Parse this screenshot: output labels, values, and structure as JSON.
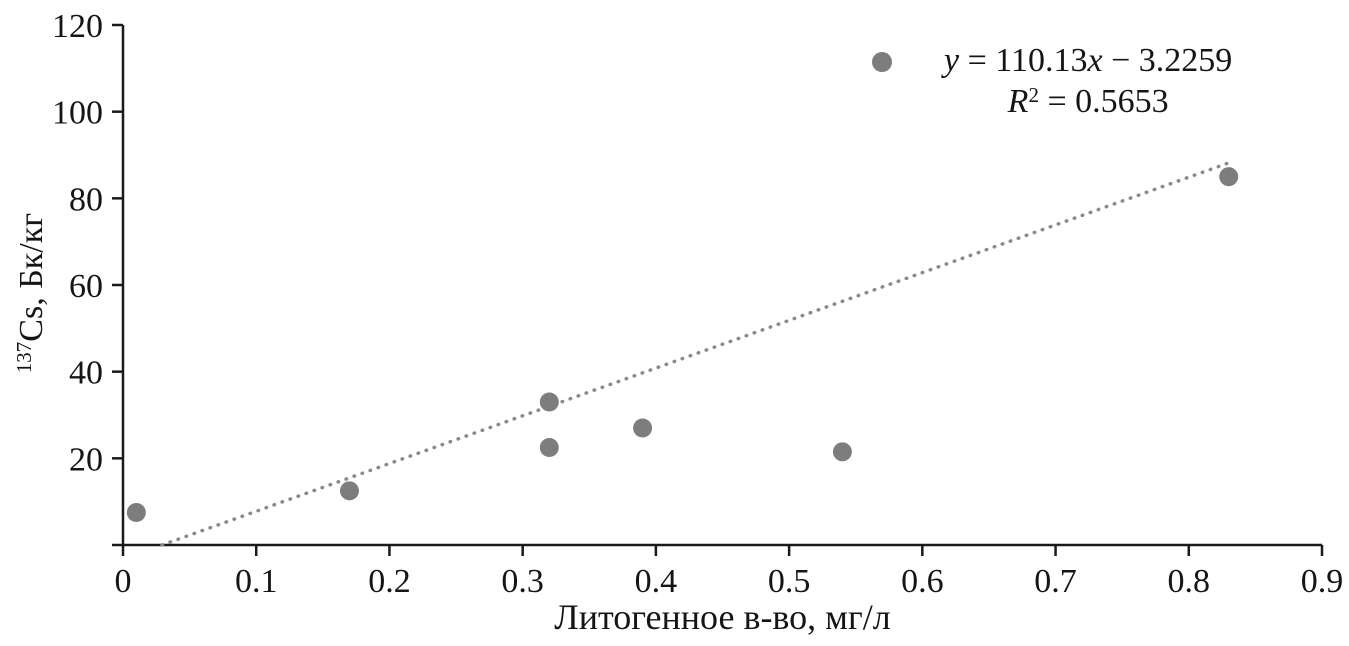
{
  "chart_data": {
    "type": "scatter",
    "title": "",
    "xlabel": "Литогенное в-во, мг/л",
    "ylabel": "137Cs, Бк/кг",
    "ylabel_parts": {
      "sup": "137",
      "rest": "Cs, Бк/кг"
    },
    "xlim": [
      0,
      0.9
    ],
    "ylim": [
      0,
      120
    ],
    "xticks": [
      0,
      0.1,
      0.2,
      0.3,
      0.4,
      0.5,
      0.6,
      0.7,
      0.8,
      0.9
    ],
    "xtick_labels": [
      "0",
      "0.1",
      "0.2",
      "0.3",
      "0.4",
      "0.5",
      "0.6",
      "0.7",
      "0.8",
      "0.9"
    ],
    "yticks": [
      0,
      20,
      40,
      60,
      80,
      100,
      120
    ],
    "ytick_labels": [
      "",
      "20",
      "40",
      "60",
      "80",
      "100",
      "120"
    ],
    "grid": false,
    "points": [
      {
        "x": 0.01,
        "y": 7.5
      },
      {
        "x": 0.17,
        "y": 12.5
      },
      {
        "x": 0.32,
        "y": 33
      },
      {
        "x": 0.32,
        "y": 22.5
      },
      {
        "x": 0.39,
        "y": 27
      },
      {
        "x": 0.54,
        "y": 21.5
      },
      {
        "x": 0.83,
        "y": 85
      }
    ],
    "trendline": {
      "style": "dotted",
      "slope": 110.13,
      "intercept": -3.2259,
      "x_end": 0.83
    },
    "point_color": "#7d7d7d",
    "line_color": "#8a8a8a",
    "axis_color": "#1a1a1a",
    "legend": {
      "position": "top-right",
      "marker_color": "#7d7d7d",
      "equation_text": "y = 110.13x − 3.2259",
      "r2_text": "R2 = 0.5653",
      "equation": {
        "y_var": "y",
        "mid": " = 110.13",
        "x_var": "x",
        "tail": " − 3.2259"
      },
      "r2": {
        "r_var": "R",
        "sup": "2",
        "value": " = 0.5653"
      }
    }
  }
}
